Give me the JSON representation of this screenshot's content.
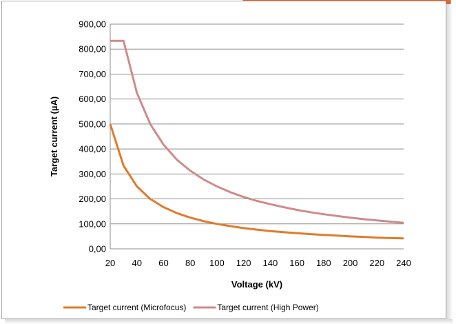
{
  "chart_data": {
    "type": "line",
    "title": "",
    "xlabel": "Voltage (kV)",
    "ylabel": "Target current (µA)",
    "x": [
      20,
      30,
      40,
      50,
      60,
      70,
      80,
      90,
      100,
      110,
      120,
      130,
      140,
      150,
      160,
      170,
      180,
      190,
      200,
      210,
      220,
      230,
      240
    ],
    "xlim": [
      20,
      240
    ],
    "ylim": [
      0,
      900
    ],
    "x_ticks": [
      "20",
      "40",
      "60",
      "80",
      "100",
      "120",
      "140",
      "160",
      "180",
      "200",
      "220",
      "240"
    ],
    "y_ticks": [
      "0,00",
      "100,00",
      "200,00",
      "300,00",
      "400,00",
      "500,00",
      "600,00",
      "700,00",
      "800,00",
      "900,00"
    ],
    "grid": "horizontal",
    "legend_position": "bottom",
    "series": [
      {
        "name": "Target current (Microfocus)",
        "color": "#e07b2a",
        "values": [
          500,
          333,
          250,
          200,
          167,
          143,
          125,
          111,
          100,
          91,
          83,
          77,
          71,
          67,
          63,
          59,
          56,
          53,
          50,
          48,
          45,
          43,
          42
        ]
      },
      {
        "name": "Target current (High Power)",
        "color": "#cf8a8a",
        "values": [
          833,
          833,
          625,
          500,
          417,
          357,
          313,
          278,
          250,
          227,
          208,
          192,
          179,
          167,
          156,
          147,
          139,
          132,
          125,
          119,
          114,
          109,
          104
        ]
      }
    ]
  }
}
